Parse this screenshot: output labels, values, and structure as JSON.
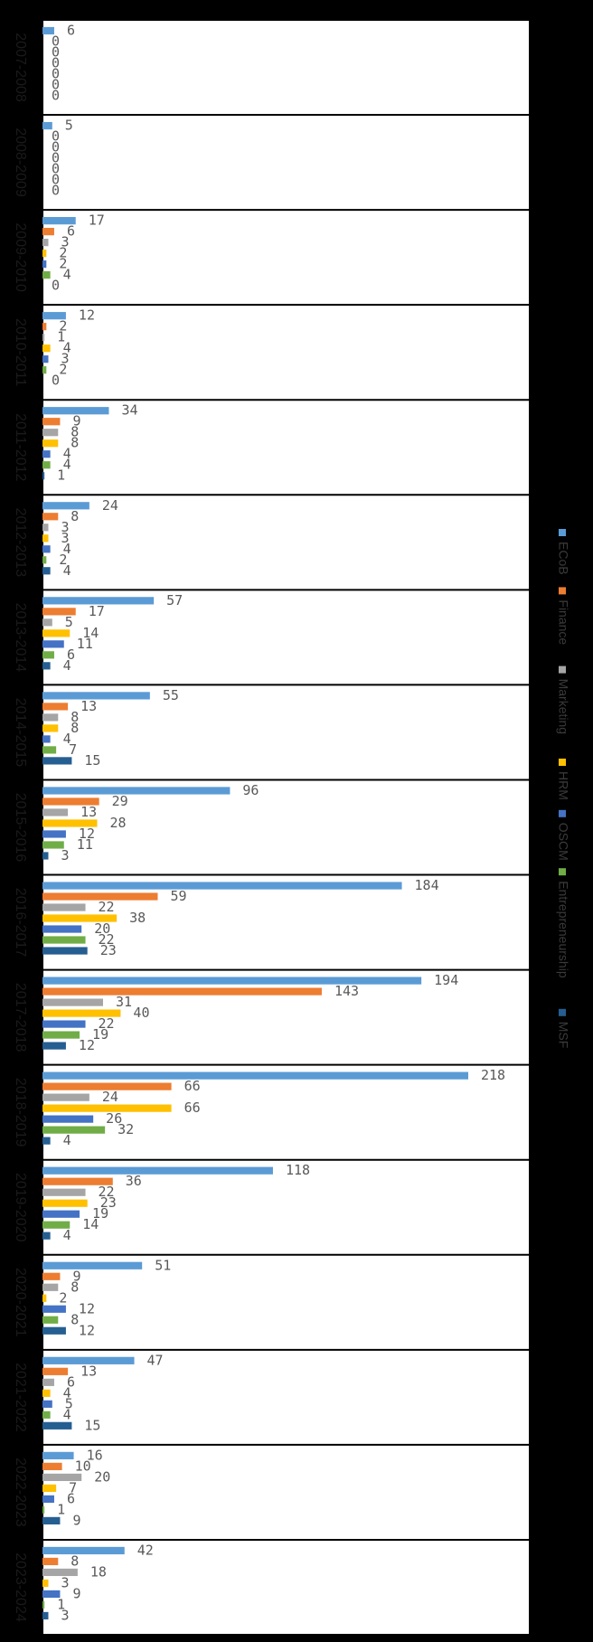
{
  "chart_data": {
    "type": "bar",
    "orientation": "horizontal",
    "title": "",
    "xlabel": "",
    "ylabel": "",
    "xlim": [
      0,
      230
    ],
    "grid": false,
    "legend_position": "right",
    "categories": [
      "2007-2008",
      "2008-2009",
      "2009-2010",
      "2010-2011",
      "2011-2012",
      "2012-2013",
      "2013-2014",
      "2014-2015",
      "2015-2016",
      "2016-2017",
      "2017-2018",
      "2018-2019",
      "2019-2020",
      "2020-2021",
      "2021-2022",
      "2022-2023",
      "2023-2024"
    ],
    "series": [
      {
        "name": "ECoB",
        "color": "#5b9bd5",
        "values": [
          6,
          5,
          17,
          12,
          34,
          24,
          57,
          55,
          96,
          184,
          194,
          218,
          118,
          51,
          47,
          16,
          42
        ]
      },
      {
        "name": "Finance",
        "color": "#ed7d31",
        "values": [
          0,
          0,
          6,
          2,
          9,
          8,
          17,
          13,
          29,
          59,
          143,
          66,
          36,
          9,
          13,
          10,
          8
        ]
      },
      {
        "name": "Marketing",
        "color": "#a5a5a5",
        "values": [
          0,
          0,
          3,
          1,
          8,
          3,
          5,
          8,
          13,
          22,
          31,
          24,
          22,
          8,
          6,
          20,
          18
        ]
      },
      {
        "name": "HRM",
        "color": "#ffc000",
        "values": [
          0,
          0,
          2,
          4,
          8,
          3,
          14,
          8,
          28,
          38,
          40,
          66,
          23,
          2,
          4,
          7,
          3
        ]
      },
      {
        "name": "OSCM",
        "color": "#4472c4",
        "values": [
          0,
          0,
          2,
          3,
          4,
          4,
          11,
          4,
          12,
          20,
          22,
          26,
          19,
          12,
          5,
          6,
          9
        ]
      },
      {
        "name": "Entrepreneurship",
        "color": "#70ad47",
        "values": [
          0,
          0,
          4,
          2,
          4,
          2,
          6,
          7,
          11,
          22,
          19,
          32,
          14,
          8,
          4,
          1,
          1
        ]
      },
      {
        "name": "MSF",
        "color": "#255e91",
        "values": [
          0,
          0,
          0,
          0,
          1,
          4,
          4,
          15,
          3,
          23,
          12,
          4,
          4,
          12,
          15,
          9,
          3
        ]
      }
    ]
  }
}
